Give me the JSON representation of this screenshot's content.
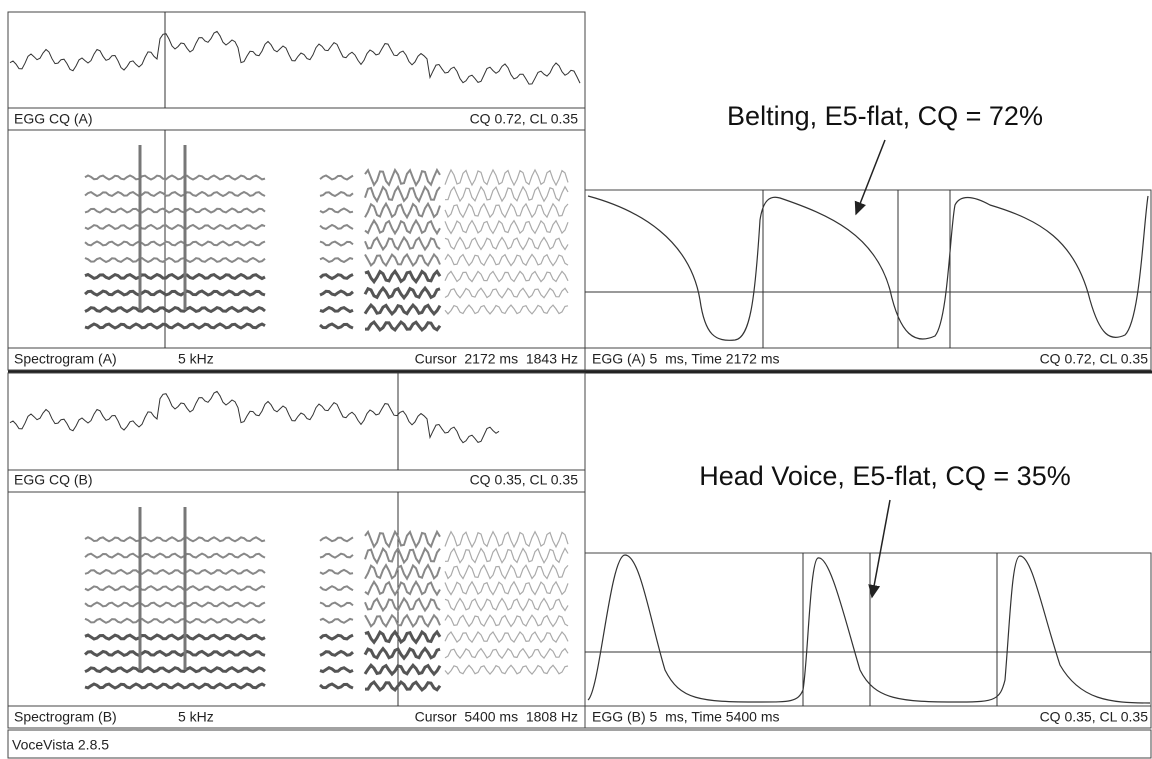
{
  "top": {
    "egg_cq_label": "EGG CQ (A)",
    "egg_cq_value": "CQ 0.72, CL 0.35",
    "spectrogram_label": "Spectrogram (A)",
    "spectrogram_range": "5 kHz",
    "cursor": "Cursor  2172 ms  1843 Hz",
    "egg_label": "EGG (A) 5  ms, Time 2172 ms",
    "egg_value": "CQ 0.72, CL 0.35",
    "annotation": "Belting, E5-flat, CQ = 72%"
  },
  "bottom": {
    "egg_cq_label": "EGG CQ (B)",
    "egg_cq_value": "CQ 0.35, CL 0.35",
    "spectrogram_label": "Spectrogram (B)",
    "spectrogram_range": "5 kHz",
    "cursor": "Cursor  5400 ms  1808 Hz",
    "egg_label": "EGG (B) 5  ms, Time 5400 ms",
    "egg_value": "CQ 0.35, CL 0.35",
    "annotation": "Head Voice, E5-flat, CQ = 35%"
  },
  "footer": "VoceVista 2.8.5"
}
